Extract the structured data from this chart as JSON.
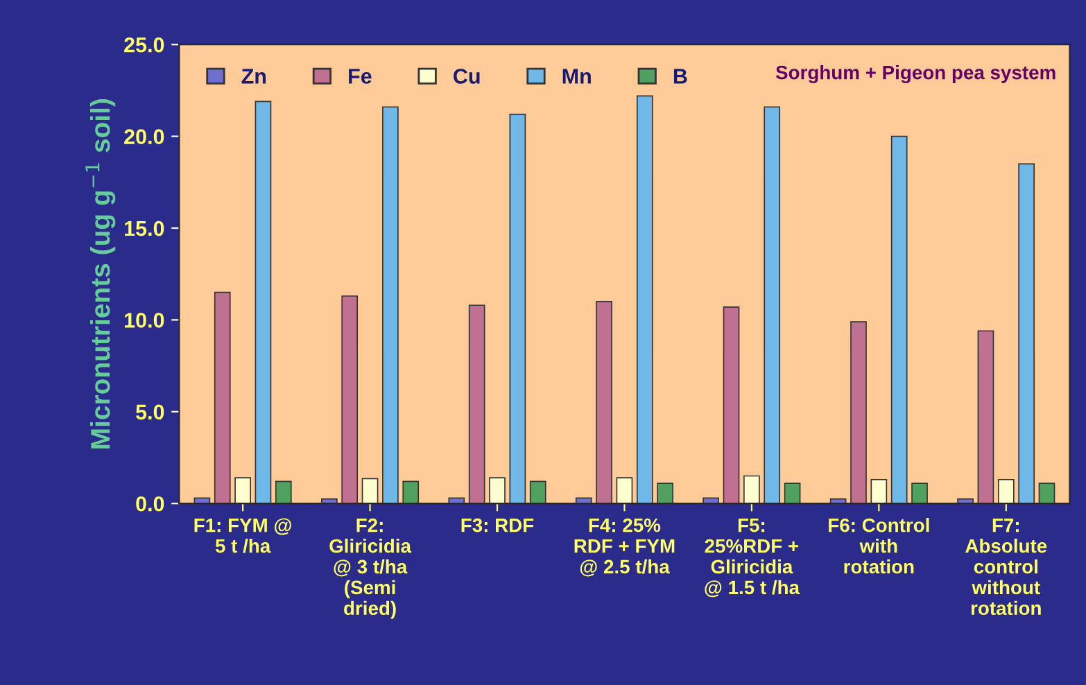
{
  "chart_data": {
    "type": "bar",
    "ylabel": "Micronutrients (ug g$^{−1}$ soil)",
    "categories": [
      "F1: FYM @\n5 t /ha",
      "F2:\nGliricidia\n@ 3 t/ha\n(Semi\ndried)",
      "F3: RDF",
      "F4: 25%\nRDF + FYM\n@ 2.5 t/ha",
      "F5:\n25%RDF +\nGliricidia\n@ 1.5 t /ha",
      "F6: Control\nwith\nrotation",
      "F7:\nAbsolute\ncontrol\nwithout\nrotation"
    ],
    "series": [
      {
        "name": "Zn",
        "color": "#6f6fd0",
        "values": [
          0.3,
          0.25,
          0.3,
          0.3,
          0.3,
          0.25,
          0.25
        ]
      },
      {
        "name": "Fe",
        "color": "#c07090",
        "values": [
          11.5,
          11.3,
          10.8,
          11.0,
          10.7,
          9.9,
          9.4
        ]
      },
      {
        "name": "Cu",
        "color": "#ffffd0",
        "values": [
          1.4,
          1.35,
          1.4,
          1.4,
          1.5,
          1.3,
          1.3
        ]
      },
      {
        "name": "Mn",
        "color": "#70b8e8",
        "values": [
          21.9,
          21.6,
          21.2,
          22.2,
          21.6,
          20.0,
          18.5
        ]
      },
      {
        "name": "B",
        "color": "#50a060",
        "values": [
          1.2,
          1.2,
          1.2,
          1.1,
          1.1,
          1.1,
          1.1
        ]
      }
    ],
    "ylim": [
      0,
      25
    ],
    "yticks": [
      {
        "value": 0,
        "label": "0.0"
      },
      {
        "value": 5,
        "label": "5.0"
      },
      {
        "value": 10,
        "label": "10.0"
      },
      {
        "value": 15,
        "label": "15.0"
      },
      {
        "value": 20,
        "label": "20.0"
      },
      {
        "value": 25,
        "label": "25.0"
      }
    ],
    "annotations": [
      "Sorghum + Pigeon pea system"
    ],
    "legend": "top left",
    "grid": false
  }
}
